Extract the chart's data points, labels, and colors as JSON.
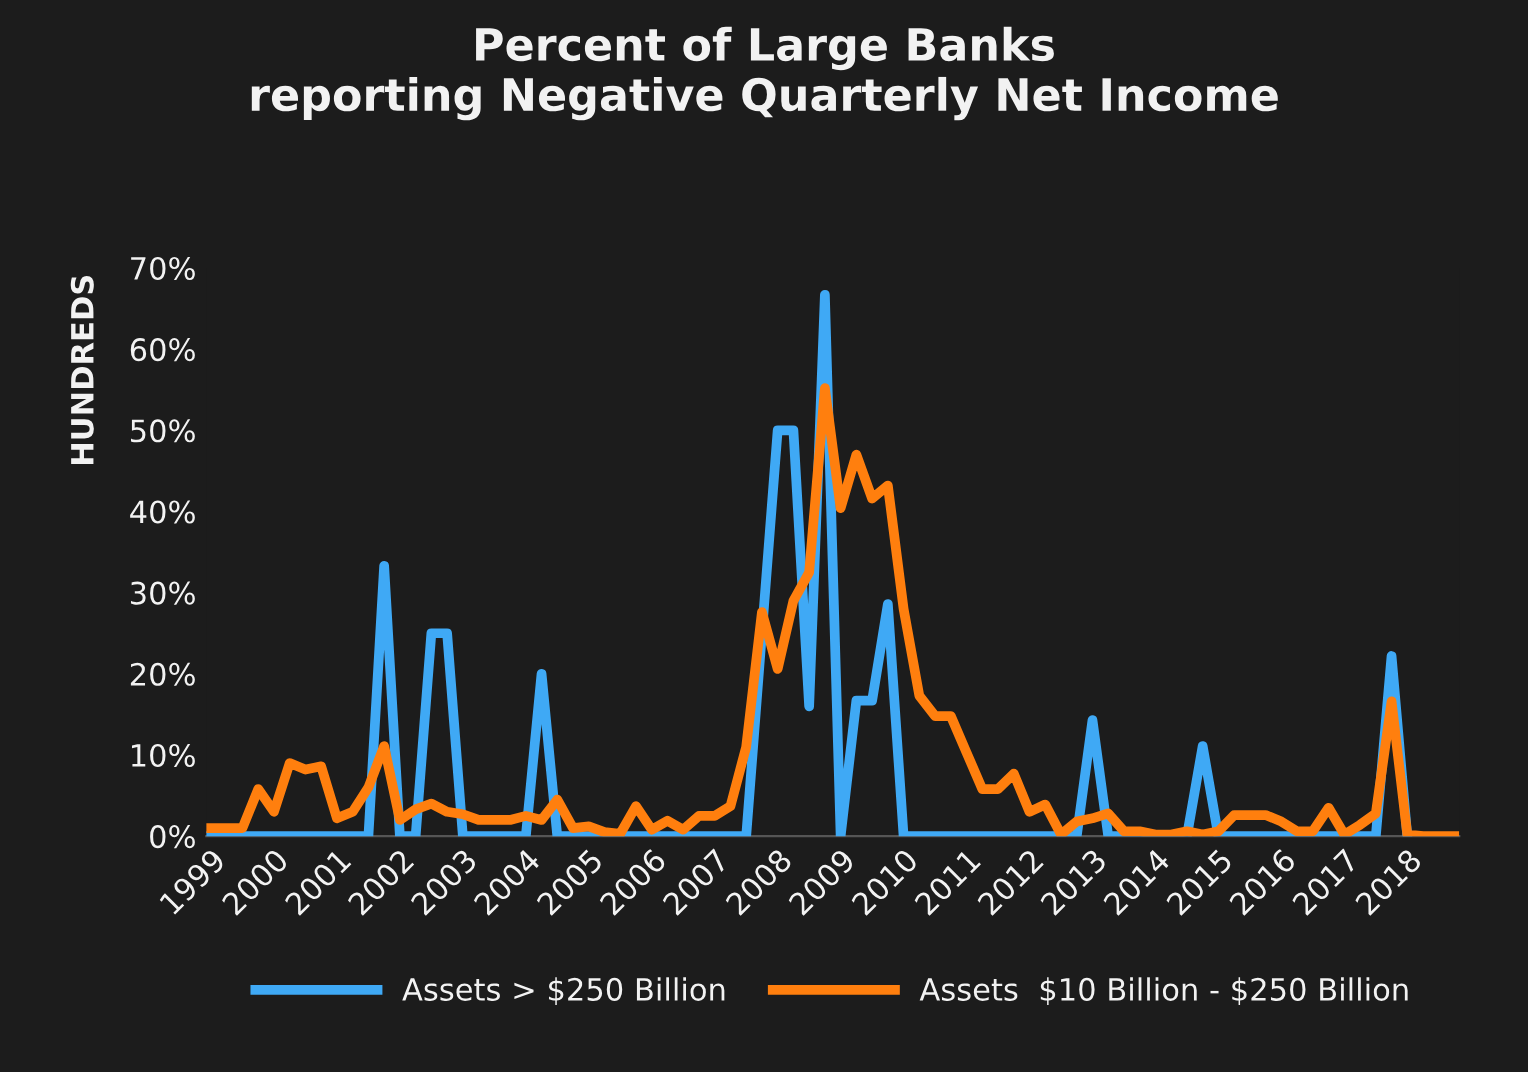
{
  "chart_data": {
    "type": "line",
    "title": "Percent of Large Banks\nreporting Negative Quarterly Net Income",
    "ylabel": "HUNDREDS",
    "categories": [
      "1999",
      null,
      null,
      null,
      "2000",
      null,
      null,
      null,
      "2001",
      null,
      null,
      null,
      "2002",
      null,
      null,
      null,
      "2003",
      null,
      null,
      null,
      "2004",
      null,
      null,
      null,
      "2005",
      null,
      null,
      null,
      "2006",
      null,
      null,
      null,
      "2007",
      null,
      null,
      null,
      "2008",
      null,
      null,
      null,
      "2009",
      null,
      null,
      null,
      "2010",
      null,
      null,
      null,
      "2011",
      null,
      null,
      null,
      "2012",
      null,
      null,
      null,
      "2013",
      null,
      null,
      null,
      "2014",
      null,
      null,
      null,
      "2015",
      null,
      null,
      null,
      "2016",
      null,
      null,
      null,
      "2017",
      null,
      null,
      null,
      "2018",
      null,
      null,
      null
    ],
    "series": [
      {
        "name": "Assets > $250 Billion",
        "color": "#3fa9f5",
        "values": [
          0,
          0,
          0,
          0,
          0,
          0,
          0,
          0,
          0,
          0,
          0,
          33.3,
          0,
          0,
          25,
          25,
          0,
          0,
          0,
          0,
          0,
          20,
          0,
          0,
          0,
          0,
          0,
          0,
          0,
          0,
          0,
          0,
          0,
          0,
          0,
          25,
          50,
          50,
          16,
          66.7,
          0,
          16.7,
          16.7,
          28.6,
          0,
          0,
          0,
          0,
          0,
          0,
          0,
          0,
          0,
          0,
          0,
          0,
          14.3,
          0,
          0,
          0,
          0,
          0,
          0,
          11.1,
          0,
          0,
          0,
          0,
          0,
          0,
          0,
          0,
          0,
          0,
          0,
          22.2,
          0,
          null,
          null,
          null
        ]
      },
      {
        "name": "Assets  $10 Billion - $250 Billion",
        "color": "#ff7f0e",
        "values": [
          1,
          1,
          1,
          5.8,
          3,
          9,
          8.2,
          8.6,
          2.2,
          3,
          6,
          11.1,
          2,
          3.3,
          4,
          3,
          2.7,
          2,
          2,
          2,
          2.5,
          2,
          4.5,
          1,
          1.2,
          0.5,
          0.3,
          3.7,
          0.8,
          1.9,
          0.8,
          2.5,
          2.5,
          3.7,
          11,
          27.6,
          20.6,
          29,
          32.5,
          55.2,
          40.4,
          47,
          41.6,
          43.2,
          28,
          17.3,
          14.8,
          14.8,
          10.3,
          5.8,
          5.8,
          7.7,
          3,
          3.9,
          0.2,
          1.8,
          2.2,
          2.8,
          0.6,
          0.6,
          0.2,
          0.2,
          0.6,
          0.2,
          0.6,
          2.6,
          2.6,
          2.6,
          1.8,
          0.6,
          0.6,
          3.5,
          0.2,
          1.4,
          2.8,
          16.6,
          0.2,
          0,
          0,
          0
        ]
      }
    ],
    "ylim": [
      0,
      70
    ],
    "yticks": [
      {
        "value": 0,
        "label": "0%"
      },
      {
        "value": 10,
        "label": "10%"
      },
      {
        "value": 20,
        "label": "20%"
      },
      {
        "value": 30,
        "label": "30%"
      },
      {
        "value": 40,
        "label": "40%"
      },
      {
        "value": 50,
        "label": "50%"
      },
      {
        "value": 60,
        "label": "60%"
      },
      {
        "value": 70,
        "label": "70%"
      }
    ],
    "legend": "bottom",
    "marker": "none",
    "line_style": "solid"
  }
}
